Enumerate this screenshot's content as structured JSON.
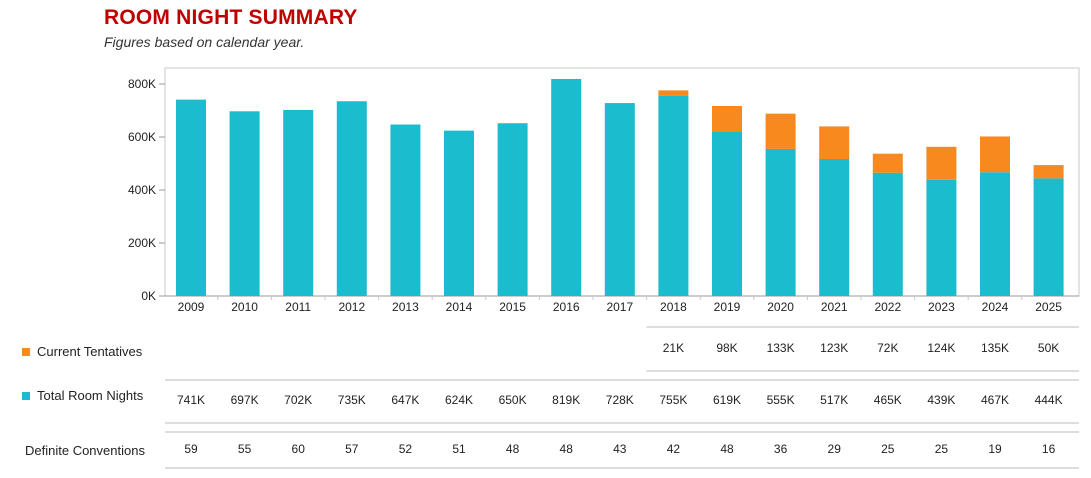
{
  "header": {
    "title": "ROOM NIGHT SUMMARY",
    "subtitle": "Figures based on calendar year."
  },
  "colors": {
    "total": "#1abccd",
    "tentative": "#f7891f",
    "axis": "#999999",
    "text": "#222222"
  },
  "chart_data": {
    "type": "bar",
    "stacked": true,
    "categories": [
      "2009",
      "2010",
      "2011",
      "2012",
      "2013",
      "2014",
      "2015",
      "2016",
      "2017",
      "2018",
      "2019",
      "2020",
      "2021",
      "2022",
      "2023",
      "2024",
      "2025"
    ],
    "series": [
      {
        "name": "Total Room Nights",
        "values": [
          741,
          697,
          702,
          735,
          647,
          624,
          650,
          819,
          728,
          755,
          619,
          555,
          517,
          465,
          439,
          467,
          444
        ]
      },
      {
        "name": "Current Tentatives",
        "values": [
          0,
          0,
          0,
          0,
          0,
          0,
          3,
          0,
          0,
          21,
          98,
          133,
          123,
          72,
          124,
          135,
          50
        ]
      }
    ],
    "ylim": [
      0,
      800
    ],
    "yticks": [
      0,
      200,
      400,
      600,
      800
    ],
    "ytick_labels": [
      "0K",
      "200K",
      "400K",
      "600K",
      "800K"
    ],
    "legend_placement": "bottom-left table"
  },
  "table": {
    "tentatives": {
      "label": "Current Tentatives",
      "start_index": 9,
      "cells": [
        "21K",
        "98K",
        "133K",
        "123K",
        "72K",
        "124K",
        "135K",
        "50K"
      ]
    },
    "totals": {
      "label": "Total Room Nights",
      "cells": [
        "741K",
        "697K",
        "702K",
        "735K",
        "647K",
        "624K",
        "650K",
        "819K",
        "728K",
        "755K",
        "619K",
        "555K",
        "517K",
        "465K",
        "439K",
        "467K",
        "444K"
      ]
    },
    "conventions": {
      "label": "Definite Conventions",
      "cells": [
        "59",
        "55",
        "60",
        "57",
        "52",
        "51",
        "48",
        "48",
        "43",
        "42",
        "48",
        "36",
        "29",
        "25",
        "25",
        "19",
        "16"
      ]
    }
  }
}
